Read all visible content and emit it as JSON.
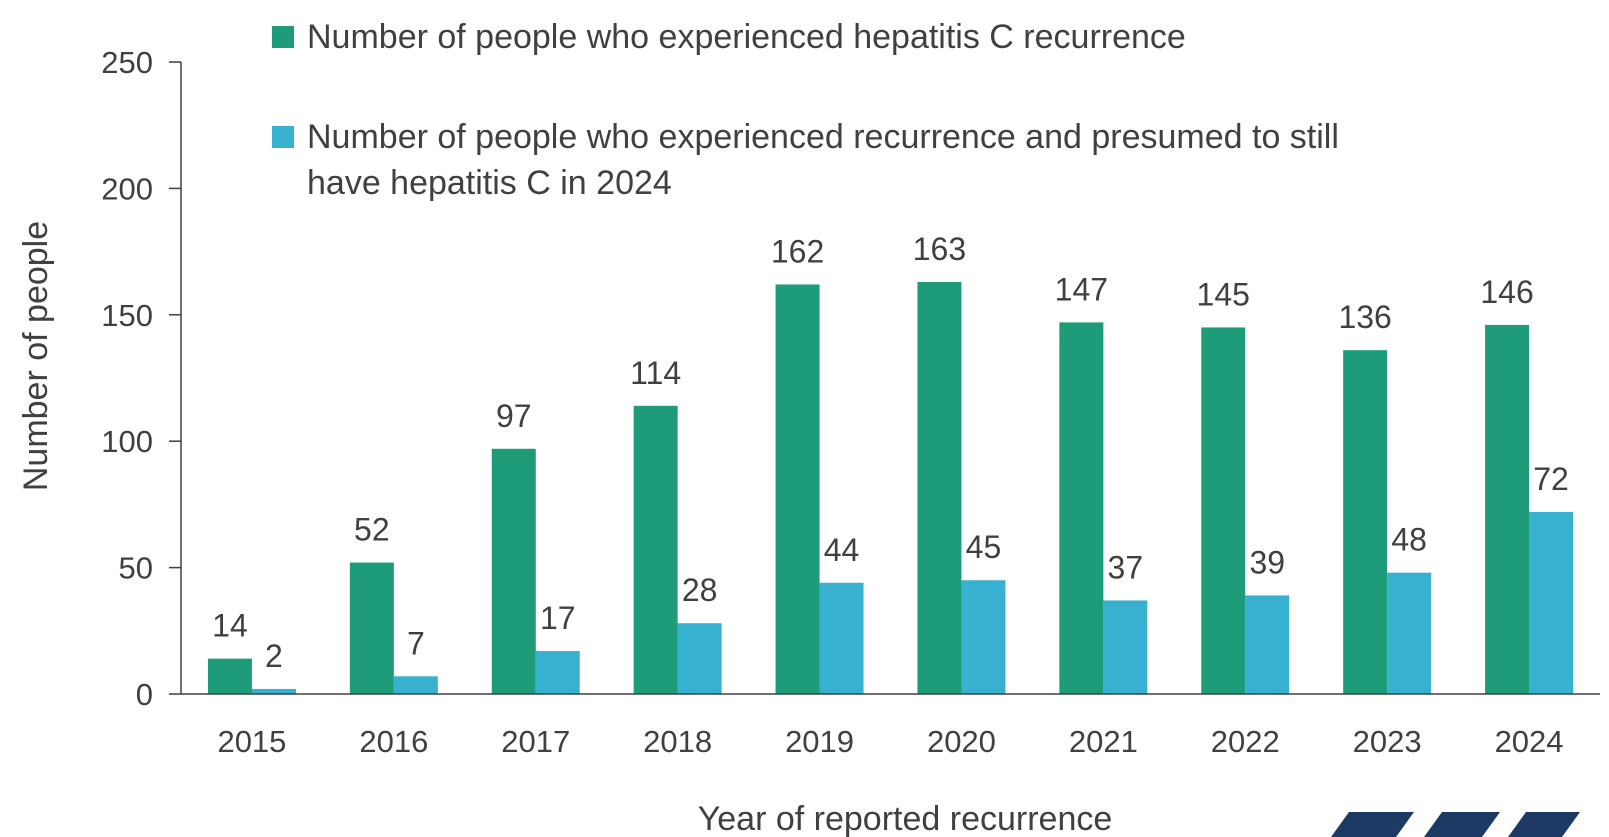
{
  "chart_data": {
    "type": "bar",
    "title": "",
    "xlabel": "Year of reported recurrence",
    "ylabel": "Number of people",
    "ylim": [
      0,
      250
    ],
    "yticks": [
      0,
      50,
      100,
      150,
      200,
      250
    ],
    "grid": false,
    "legend_position": "top",
    "categories": [
      "2015",
      "2016",
      "2017",
      "2018",
      "2019",
      "2020",
      "2021",
      "2022",
      "2023",
      "2024"
    ],
    "series": [
      {
        "name": "Number of people who experienced hepatitis C recurrence",
        "legend_lines": [
          "Number of people who experienced hepatitis C recurrence"
        ],
        "color": "#1e9b78",
        "values": [
          14,
          52,
          97,
          114,
          162,
          163,
          147,
          145,
          136,
          146
        ]
      },
      {
        "name": "Number of people who experienced recurrence and presumed to still have hepatitis C in 2024",
        "legend_lines": [
          "Number of people who experienced recurrence and presumed to still",
          "have hepatitis C in 2024"
        ],
        "color": "#38b0d0",
        "values": [
          2,
          7,
          17,
          28,
          44,
          45,
          37,
          39,
          48,
          72
        ]
      }
    ],
    "logo_color": "#1c3a63"
  }
}
